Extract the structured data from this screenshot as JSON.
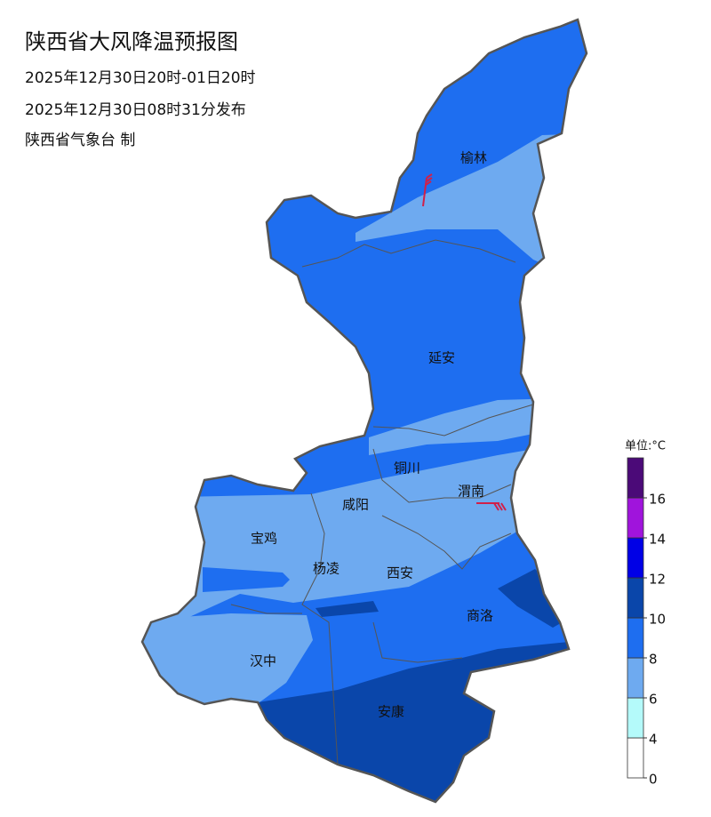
{
  "header": {
    "title": "陕西省大风降温预报图",
    "period": "2025年12月30日20时-01日20时",
    "issued": "2025年12月30日08时31分发布",
    "issuer": "陕西省气象台 制"
  },
  "cities": [
    "榆林",
    "延安",
    "铜川",
    "渭南",
    "咸阳",
    "宝鸡",
    "杨凌",
    "西安",
    "汉中",
    "商洛",
    "安康"
  ],
  "legend": {
    "unit": "单位:°C",
    "ticks": [
      0,
      4,
      6,
      8,
      10,
      12,
      14,
      16
    ],
    "colors": [
      "#ffffff",
      "#b4fafa",
      "#6eaaf0",
      "#1e6ef0",
      "#0a46aa",
      "#0000e6",
      "#a014dc",
      "#4b0a78"
    ]
  }
}
